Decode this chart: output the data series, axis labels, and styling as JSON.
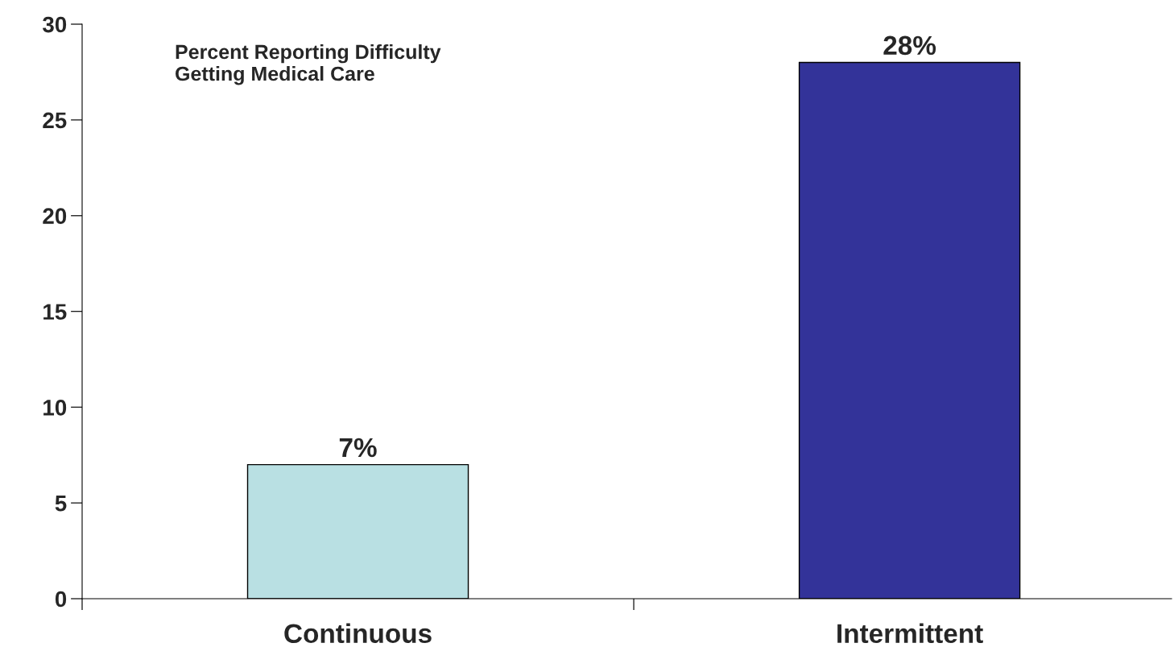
{
  "chart_data": {
    "type": "bar",
    "categories": [
      "Continuous",
      "Intermittent"
    ],
    "values": [
      7,
      28
    ],
    "colors": [
      "#b9e0e3",
      "#333399"
    ],
    "value_labels": [
      "7%",
      "28%"
    ],
    "ylim": [
      0,
      30
    ],
    "yticks": [
      0,
      5,
      10,
      15,
      20,
      25,
      30
    ],
    "annotations": [
      "Percent Reporting Difficulty\nGetting Medical Care"
    ],
    "grid": false,
    "legend": false
  }
}
